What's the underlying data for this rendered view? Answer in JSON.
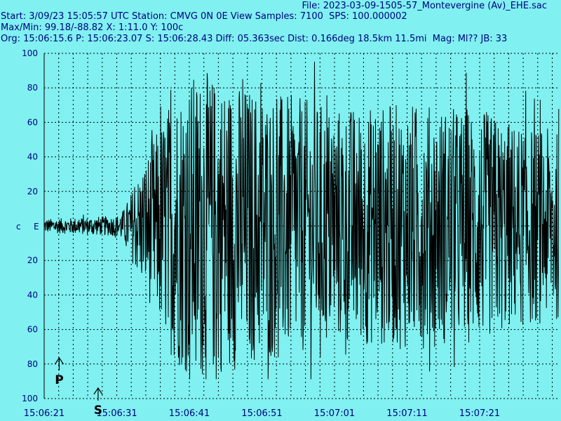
{
  "header": {
    "file_line": "File: 2023-03-09-1505-57_Montevergine (Av)_EHE.sac",
    "start_line": "Start: 3/09/23 15:05:57 UTC Station: CMVG 0N 0E View Samples: 7100  SPS: 100.000002",
    "maxmin_line": "Max/Min: 99.18/-88.82 X: 1:11.0 Y: 100c",
    "org_line": "Org: 15:06:15.6 P: 15:06:23.07 S: 15:06:28.43 Diff: 05.363sec Dist: 0.166deg 18.5km 11.5mi  Mag: Ml?? JB: 33"
  },
  "channel": {
    "c_label": "c",
    "e_label": "E"
  },
  "markers": [
    {
      "label": "P",
      "time": "15:06:23.07"
    },
    {
      "label": "S",
      "time": "15:06:28.43"
    }
  ],
  "colors": {
    "background": "#80f0f0",
    "text": "#000080",
    "trace": "#000000",
    "grid": "#000000"
  },
  "chart_data": {
    "type": "line",
    "title": "",
    "xlabel": "",
    "ylabel": "",
    "x_ticks": [
      "15:06:21",
      "15:06:31",
      "15:06:41",
      "15:06:51",
      "15:07:01",
      "15:07:11",
      "15:07:21"
    ],
    "x_range_seconds_after_15_06_21": [
      0,
      71
    ],
    "y_ticks": [
      "100",
      "80",
      "60",
      "40",
      "20",
      "",
      "20",
      "40",
      "60",
      "80",
      "100"
    ],
    "ylim": [
      -100,
      100
    ],
    "grid": true,
    "max": 99.18,
    "min": -88.82,
    "envelope_seconds_after_15_06_21": [
      0,
      5,
      10,
      11,
      12,
      14,
      16,
      18,
      20,
      22,
      25,
      30,
      35,
      40,
      45,
      50,
      55,
      60,
      65,
      71
    ],
    "envelope_amplitude": [
      4,
      5,
      6,
      10,
      20,
      40,
      60,
      80,
      88,
      90,
      85,
      80,
      75,
      70,
      70,
      72,
      70,
      68,
      60,
      55
    ]
  }
}
